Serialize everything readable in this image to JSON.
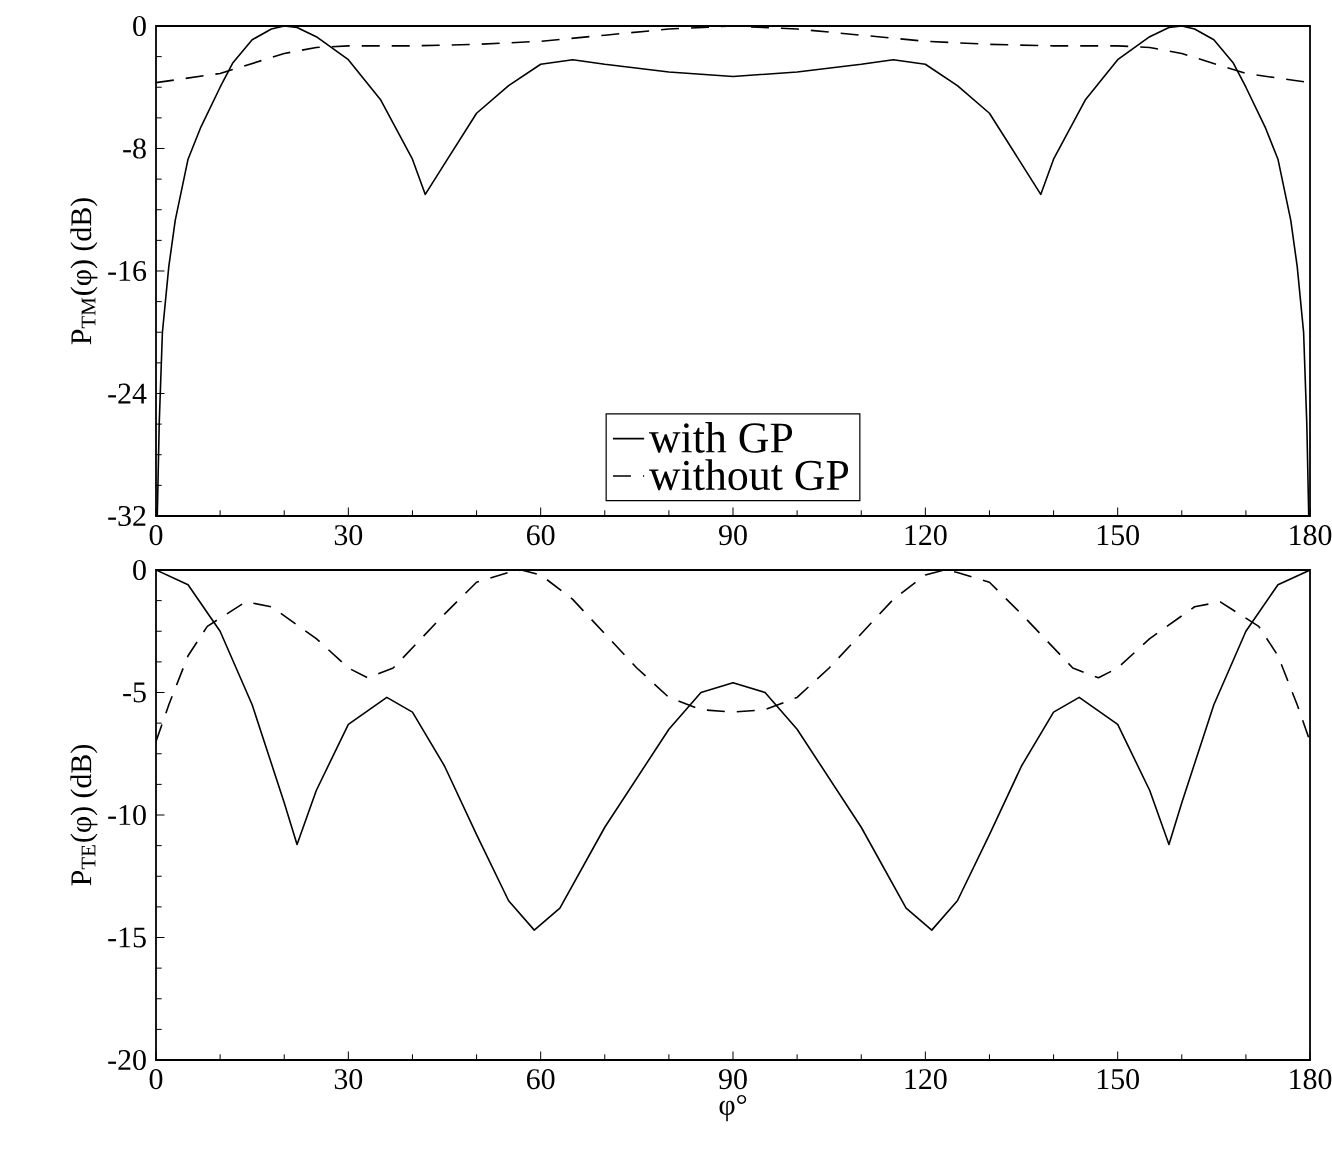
{
  "chart_data": [
    {
      "type": "line",
      "ylabel": "P$_{TM}$(φ) (dB)",
      "xlim": [
        0,
        180
      ],
      "xticks": [
        0,
        30,
        60,
        90,
        120,
        150,
        180
      ],
      "ylim": [
        -32,
        0
      ],
      "yticks": [
        -32,
        -24,
        -16,
        -8,
        0
      ],
      "legend": "bottom",
      "series": [
        {
          "name": "with GP",
          "color": "#000000",
          "line_style": "solid",
          "x": [
            0.2,
            0.5,
            1,
            2,
            3,
            5,
            7,
            10,
            12,
            15,
            18,
            20,
            22,
            25,
            30,
            35,
            40,
            42,
            45,
            50,
            55,
            60,
            65,
            70,
            80,
            90,
            100,
            110,
            115,
            120,
            125,
            130,
            135,
            138,
            140,
            145,
            150,
            155,
            158,
            160,
            162,
            165,
            168,
            170,
            173,
            175,
            177,
            178,
            179,
            179.5,
            179.8
          ],
          "values": [
            -32,
            -26,
            -20,
            -15.7,
            -12.7,
            -8.7,
            -6.6,
            -4,
            -2.4,
            -0.9,
            -0.2,
            0,
            -0.1,
            -0.7,
            -2.2,
            -4.8,
            -8.7,
            -11,
            -9,
            -5.7,
            -3.9,
            -2.5,
            -2.2,
            -2.5,
            -3,
            -3.3,
            -3,
            -2.5,
            -2.2,
            -2.5,
            -3.9,
            -5.7,
            -9,
            -11,
            -8.7,
            -4.8,
            -2.2,
            -0.7,
            -0.1,
            0,
            -0.2,
            -0.9,
            -2.4,
            -4,
            -6.6,
            -8.7,
            -12.7,
            -15.7,
            -20,
            -26,
            -32
          ]
        },
        {
          "name": "without GP",
          "color": "#000000",
          "line_style": "dashed",
          "x": [
            0,
            10,
            20,
            25,
            30,
            40,
            50,
            60,
            70,
            80,
            90,
            100,
            110,
            120,
            130,
            140,
            150,
            155,
            160,
            170,
            180
          ],
          "values": [
            -3.7,
            -3.1,
            -1.8,
            -1.4,
            -1.3,
            -1.3,
            -1.2,
            -1,
            -0.6,
            -0.2,
            0,
            -0.2,
            -0.6,
            -1,
            -1.2,
            -1.3,
            -1.3,
            -1.4,
            -1.8,
            -3.1,
            -3.7
          ]
        }
      ]
    },
    {
      "type": "line",
      "xlabel": "φ°",
      "ylabel": "P$_{TE}$(φ) (dB)",
      "xlim": [
        0,
        180
      ],
      "xticks": [
        0,
        30,
        60,
        90,
        120,
        150,
        180
      ],
      "ylim": [
        -20,
        0
      ],
      "yticks": [
        -20,
        -15,
        -10,
        -5,
        0
      ],
      "series": [
        {
          "color": "#000000",
          "line_style": "solid",
          "x": [
            0,
            5,
            10,
            15,
            20,
            22,
            25,
            30,
            36,
            40,
            45,
            50,
            55,
            59,
            63,
            70,
            80,
            85,
            90,
            95,
            100,
            110,
            117,
            121,
            125,
            130,
            135,
            140,
            144,
            150,
            155,
            158,
            160,
            165,
            170,
            175,
            180
          ],
          "values": [
            0,
            -0.6,
            -2.5,
            -5.5,
            -9.5,
            -11.2,
            -9,
            -6.3,
            -5.2,
            -5.8,
            -8,
            -10.8,
            -13.5,
            -14.7,
            -13.8,
            -10.5,
            -6.5,
            -5,
            -4.6,
            -5,
            -6.5,
            -10.5,
            -13.8,
            -14.7,
            -13.5,
            -10.8,
            -8,
            -5.8,
            -5.2,
            -6.3,
            -9,
            -11.2,
            -9.5,
            -5.5,
            -2.5,
            -0.6,
            0
          ]
        },
        {
          "color": "#000000",
          "line_style": "dashed",
          "x": [
            0,
            2,
            5,
            8,
            14,
            18,
            25,
            30,
            33,
            37,
            45,
            50,
            55,
            57,
            60,
            65,
            70,
            75,
            80,
            85,
            90,
            95,
            100,
            105,
            110,
            115,
            120,
            123,
            125,
            130,
            135,
            143,
            147,
            150,
            155,
            162,
            166,
            172,
            175,
            178,
            180
          ],
          "values": [
            -7,
            -5.5,
            -3.5,
            -2.3,
            -1.3,
            -1.5,
            -2.8,
            -4,
            -4.4,
            -4,
            -1.8,
            -0.5,
            -0.1,
            0,
            -0.2,
            -1.2,
            -2.6,
            -4,
            -5.2,
            -5.7,
            -5.8,
            -5.7,
            -5.2,
            -4,
            -2.6,
            -1.2,
            -0.2,
            0,
            -0.1,
            -0.5,
            -1.8,
            -4,
            -4.4,
            -4,
            -2.8,
            -1.5,
            -1.3,
            -2.3,
            -3.5,
            -5.5,
            -7
          ]
        }
      ]
    }
  ]
}
